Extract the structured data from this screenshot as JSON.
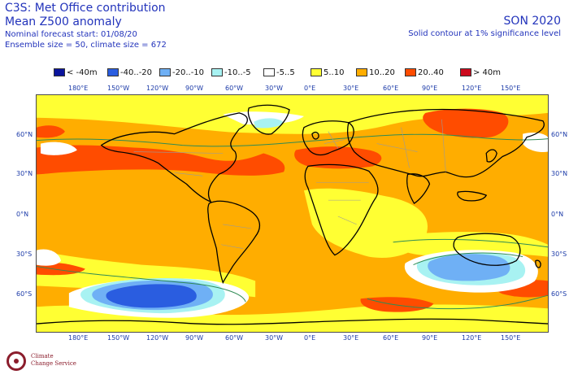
{
  "header": {
    "title": "C3S: Met Office contribution",
    "subtitle": "Mean Z500 anomaly",
    "forecast_start": "Nominal forecast start: 01/08/20",
    "ensemble": "Ensemble size = 50, climate size = 672"
  },
  "season": {
    "label": "SON 2020",
    "note": "Solid contour at 1% significance level"
  },
  "legend": [
    {
      "label": "< -40m",
      "color": "#0a149c"
    },
    {
      "label": "-40..-20",
      "color": "#2a5de0"
    },
    {
      "label": "-20..-10",
      "color": "#6fb0f5"
    },
    {
      "label": "-10..-5",
      "color": "#a8f2f2"
    },
    {
      "label": "-5..5",
      "color": "#ffffff"
    },
    {
      "label": "5..10",
      "color": "#ffff33"
    },
    {
      "label": "10..20",
      "color": "#ffad00"
    },
    {
      "label": "20..40",
      "color": "#ff4c00"
    },
    {
      "label": "> 40m",
      "color": "#cc0a1e"
    }
  ],
  "axes": {
    "lon_labels_top": [
      "180°E",
      "150°W",
      "120°W",
      "90°W",
      "60°W",
      "30°W",
      "0°E",
      "30°E",
      "60°E",
      "90°E",
      "120°E",
      "150°E"
    ],
    "lon_labels_bottom": [
      "180°E",
      "150°W",
      "120°W",
      "90°W",
      "60°W",
      "30°W",
      "0°E",
      "30°E",
      "60°E",
      "90°E",
      "120°E",
      "150°E"
    ],
    "lat_labels": [
      "60°N",
      "30°N",
      "0°N",
      "30°S",
      "60°S"
    ]
  },
  "logo": {
    "line1": "Climate",
    "line2": "Change Service"
  }
}
